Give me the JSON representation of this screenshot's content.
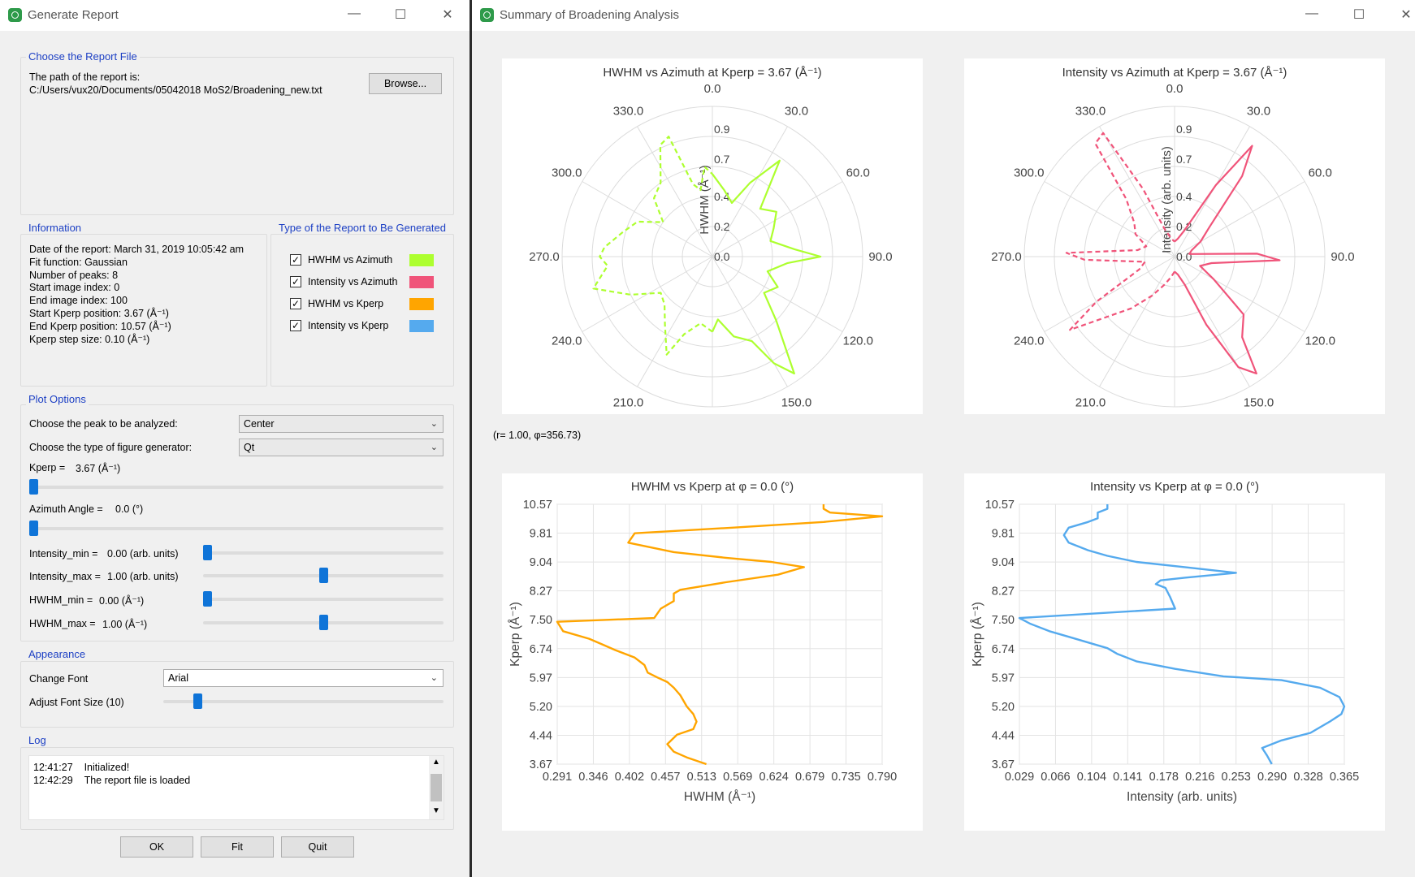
{
  "left_window": {
    "title": "Generate Report",
    "report_file": {
      "group_title": "Choose the Report File",
      "path_label": "The path of the report is:",
      "path_value": "C:/Users/vux20/Documents/05042018 MoS2/Broadening_new.txt",
      "browse_label": "Browse..."
    },
    "information": {
      "group_title": "Information",
      "lines": [
        "Date of the report: March 31, 2019  10:05:42 am",
        "Fit function: Gaussian",
        "Number of peaks: 8",
        "Start image index: 0",
        "End image index: 100",
        "Start Kperp position:  3.67 (Å⁻¹)",
        "End Kperp position: 10.57 (Å⁻¹)",
        "Kperp step size:  0.10 (Å⁻¹)"
      ]
    },
    "report_types": {
      "group_title": "Type of the Report to Be Generated",
      "items": [
        {
          "label": "HWHM vs Azimuth",
          "checked": "✓",
          "color": "#adff2f"
        },
        {
          "label": "Intensity vs Azimuth",
          "checked": "✓",
          "color": "#f0547a"
        },
        {
          "label": "HWHM vs Kperp",
          "checked": "✓",
          "color": "#ffa500"
        },
        {
          "label": "Intensity vs Kperp",
          "checked": "✓",
          "color": "#55aaee"
        }
      ]
    },
    "plot_options": {
      "group_title": "Plot Options",
      "peak_label": "Choose the peak to be analyzed:",
      "peak_value": "Center",
      "generator_label": "Choose the type of figure generator:",
      "generator_value": "Qt",
      "kperp_label": "Kperp =",
      "kperp_value": "3.67 (Å⁻¹)",
      "kperp_fraction": 0.0,
      "azimuth_label": "Azimuth Angle =",
      "azimuth_value": "0.0 (°)",
      "azimuth_fraction": 0.0,
      "imin_label": "Intensity_min =",
      "imin_value": "0.00 (arb. units)",
      "imin_fraction": 0.0,
      "imax_label": "Intensity_max =",
      "imax_value": "1.00 (arb. units)",
      "imax_fraction": 0.5,
      "hmin_label": "HWHM_min =",
      "hmin_value": "0.00 (Å⁻¹)",
      "hmin_fraction": 0.0,
      "hmax_label": "HWHM_max =",
      "hmax_value": "1.00 (Å⁻¹)",
      "hmax_fraction": 0.5
    },
    "appearance": {
      "group_title": "Appearance",
      "font_label": "Change Font",
      "font_value": "Arial",
      "size_label": "Adjust Font Size (10)",
      "size_fraction": 0.11
    },
    "log": {
      "group_title": "Log",
      "entries": [
        {
          "time": "12:41:27",
          "message": "Initialized!"
        },
        {
          "time": "12:42:29",
          "message": "The report file is loaded"
        }
      ]
    },
    "buttons": {
      "ok": "OK",
      "fit": "Fit",
      "quit": "Quit"
    }
  },
  "right_window": {
    "title": "Summary of Broadening Analysis",
    "coord_readout": "(r= 1.00, φ=356.73)"
  },
  "chart_data": [
    {
      "type": "polar",
      "title": "HWHM vs Azimuth at Kperp = 3.67 (Å⁻¹)",
      "ylabel": "HWHM (Å⁻¹)",
      "color": "#adff2f",
      "angle_ticks": [
        "0.0",
        "30.0",
        "60.0",
        "90.0",
        "120.0",
        "150.0",
        "180.0",
        "210.0",
        "240.0",
        "270.0",
        "300.0",
        "330.0"
      ],
      "r_ticks": [
        "0.0",
        "0.2",
        "0.4",
        "0.7",
        "0.9"
      ],
      "series": [
        {
          "style": "solid",
          "theta": [
            0,
            10,
            20,
            27,
            35,
            45,
            55,
            65,
            75,
            85,
            90,
            95,
            105,
            115,
            125,
            135,
            145,
            150,
            155,
            165,
            175,
            180
          ],
          "r": [
            0.55,
            0.45,
            0.38,
            0.55,
            0.78,
            0.45,
            0.52,
            0.45,
            0.4,
            0.55,
            0.72,
            0.5,
            0.38,
            0.48,
            0.42,
            0.6,
            0.95,
            0.82,
            0.62,
            0.55,
            0.42,
            0.5
          ]
        },
        {
          "style": "dashed",
          "theta": [
            180,
            190,
            200,
            205,
            215,
            225,
            235,
            245,
            255,
            265,
            270,
            275,
            285,
            295,
            305,
            315,
            325,
            335,
            340,
            345,
            350,
            355,
            360
          ],
          "r": [
            0.5,
            0.45,
            0.55,
            0.72,
            0.55,
            0.45,
            0.42,
            0.6,
            0.82,
            0.7,
            0.75,
            0.72,
            0.62,
            0.55,
            0.4,
            0.55,
            0.6,
            0.82,
            0.85,
            0.5,
            0.45,
            0.6,
            0.55
          ]
        }
      ]
    },
    {
      "type": "polar",
      "title": "Intensity vs Azimuth at Kperp = 3.67 (Å⁻¹)",
      "ylabel": "Intensity (arb. units)",
      "color": "#f0547a",
      "angle_ticks": [
        "0.0",
        "30.0",
        "60.0",
        "90.0",
        "120.0",
        "150.0",
        "180.0",
        "210.0",
        "240.0",
        "270.0",
        "300.0",
        "330.0"
      ],
      "r_ticks": [
        "0.0",
        "0.2",
        "0.4",
        "0.7",
        "0.9"
      ],
      "series": [
        {
          "style": "solid",
          "theta": [
            0,
            10,
            20,
            30,
            35,
            40,
            50,
            60,
            70,
            80,
            88,
            92,
            100,
            110,
            120,
            130,
            140,
            145,
            150,
            155,
            160,
            170,
            180
          ],
          "r": [
            0.1,
            0.12,
            0.18,
            0.55,
            0.9,
            0.7,
            0.3,
            0.2,
            0.12,
            0.1,
            0.55,
            0.7,
            0.25,
            0.18,
            0.3,
            0.6,
            0.7,
            0.95,
            0.85,
            0.5,
            0.2,
            0.12,
            0.1
          ]
        },
        {
          "style": "dashed",
          "theta": [
            180,
            190,
            200,
            210,
            220,
            230,
            235,
            240,
            250,
            260,
            268,
            272,
            280,
            290,
            300,
            310,
            320,
            325,
            330,
            335,
            340,
            350,
            360
          ],
          "r": [
            0.1,
            0.14,
            0.2,
            0.3,
            0.45,
            0.65,
            0.85,
            0.6,
            0.25,
            0.2,
            0.6,
            0.72,
            0.25,
            0.2,
            0.3,
            0.35,
            0.5,
            0.92,
            0.95,
            0.5,
            0.2,
            0.12,
            0.1
          ]
        }
      ]
    },
    {
      "type": "line",
      "title": "HWHM vs Kperp at φ = 0.0 (°)",
      "xlabel": "HWHM (Å⁻¹)",
      "ylabel": "Kperp (Å⁻¹)",
      "color": "#ffa500",
      "xlim": [
        0.291,
        0.79
      ],
      "ylim": [
        3.67,
        10.57
      ],
      "x_ticks": [
        "0.291",
        "0.346",
        "0.402",
        "0.457",
        "0.513",
        "0.569",
        "0.624",
        "0.679",
        "0.735",
        "0.790"
      ],
      "y_ticks": [
        "3.67",
        "4.44",
        "5.20",
        "5.97",
        "6.74",
        "7.50",
        "8.27",
        "9.04",
        "9.81",
        "10.57"
      ],
      "series": [
        {
          "name": "",
          "x": [
            0.52,
            0.49,
            0.47,
            0.46,
            0.475,
            0.5,
            0.505,
            0.5,
            0.49,
            0.48,
            0.47,
            0.46,
            0.445,
            0.43,
            0.425,
            0.41,
            0.38,
            0.36,
            0.34,
            0.3,
            0.291,
            0.44,
            0.45,
            0.47,
            0.47,
            0.48,
            0.55,
            0.63,
            0.67,
            0.62,
            0.55,
            0.47,
            0.4,
            0.41,
            0.56,
            0.7,
            0.79,
            0.71,
            0.7,
            0.7
          ],
          "y": [
            3.67,
            3.85,
            4.0,
            4.2,
            4.45,
            4.6,
            4.8,
            5.0,
            5.2,
            5.5,
            5.7,
            5.85,
            5.97,
            6.1,
            6.3,
            6.5,
            6.7,
            6.85,
            7.0,
            7.2,
            7.45,
            7.55,
            7.8,
            8.0,
            8.2,
            8.3,
            8.5,
            8.7,
            8.9,
            9.04,
            9.15,
            9.3,
            9.55,
            9.8,
            9.95,
            10.1,
            10.25,
            10.35,
            10.45,
            10.57
          ]
        }
      ]
    },
    {
      "type": "line",
      "title": "Intensity vs Kperp at φ = 0.0 (°)",
      "xlabel": "Intensity (arb. units)",
      "ylabel": "Kperp (Å⁻¹)",
      "color": "#55aaee",
      "xlim": [
        0.029,
        0.365
      ],
      "ylim": [
        3.67,
        10.57
      ],
      "x_ticks": [
        "0.029",
        "0.066",
        "0.104",
        "0.141",
        "0.178",
        "0.216",
        "0.253",
        "0.290",
        "0.328",
        "0.365"
      ],
      "y_ticks": [
        "3.67",
        "4.44",
        "5.20",
        "5.97",
        "6.74",
        "7.50",
        "8.27",
        "9.04",
        "9.81",
        "10.57"
      ],
      "series": [
        {
          "name": "",
          "x": [
            0.29,
            0.285,
            0.28,
            0.3,
            0.33,
            0.35,
            0.362,
            0.365,
            0.36,
            0.34,
            0.3,
            0.24,
            0.19,
            0.15,
            0.13,
            0.12,
            0.1,
            0.08,
            0.06,
            0.04,
            0.029,
            0.19,
            0.185,
            0.18,
            0.17,
            0.175,
            0.2,
            0.253,
            0.2,
            0.15,
            0.12,
            0.1,
            0.08,
            0.075,
            0.08,
            0.1,
            0.11,
            0.11,
            0.12,
            0.12
          ],
          "y": [
            3.67,
            3.9,
            4.1,
            4.3,
            4.5,
            4.8,
            5.0,
            5.2,
            5.45,
            5.7,
            5.9,
            6.0,
            6.2,
            6.4,
            6.6,
            6.75,
            6.9,
            7.05,
            7.2,
            7.4,
            7.55,
            7.8,
            8.1,
            8.35,
            8.45,
            8.55,
            8.62,
            8.75,
            8.9,
            9.04,
            9.2,
            9.35,
            9.55,
            9.75,
            9.95,
            10.1,
            10.2,
            10.35,
            10.45,
            10.57
          ]
        }
      ]
    }
  ]
}
